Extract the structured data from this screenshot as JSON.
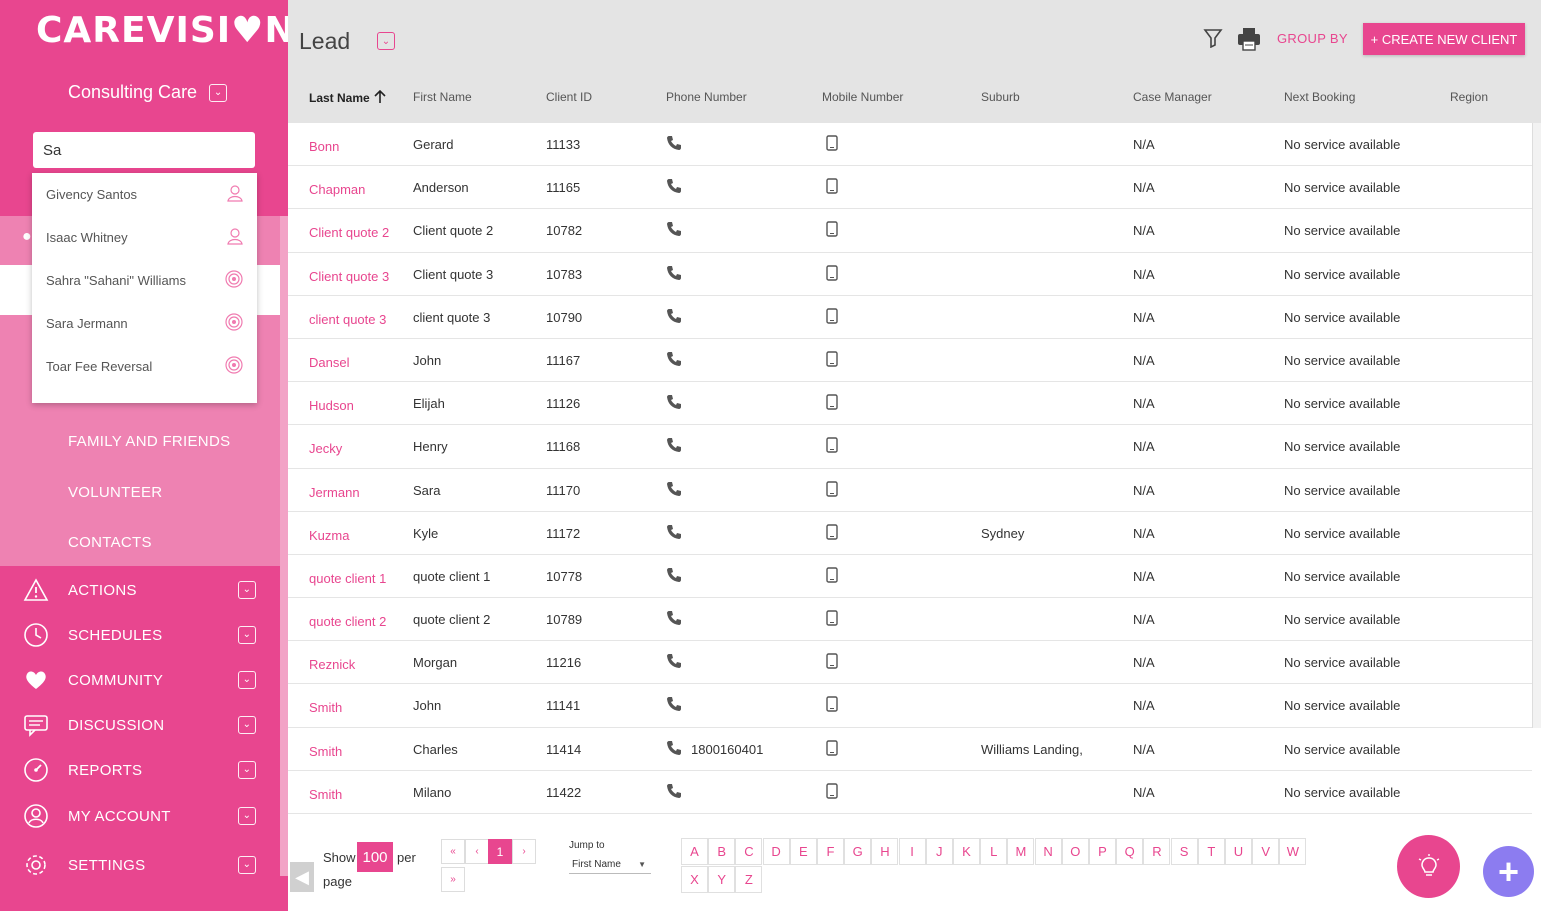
{
  "app": {
    "logo": "CAREVISI♥N",
    "org_name": "Consulting Care"
  },
  "search": {
    "value": "Sa",
    "results": [
      {
        "name": "Givency Santos",
        "icon": "user-icon"
      },
      {
        "name": "Isaac Whitney",
        "icon": "user-icon"
      },
      {
        "name": "Sahra \"Sahani\" Williams",
        "icon": "target-icon"
      },
      {
        "name": "Sara Jermann",
        "icon": "target-icon"
      },
      {
        "name": "Toar Fee Reversal",
        "icon": "target-icon"
      }
    ]
  },
  "sidebar": {
    "sub_items": [
      "FAMILY AND FRIENDS",
      "VOLUNTEER",
      "CONTACTS"
    ],
    "nav": [
      {
        "label": "ACTIONS",
        "icon": "warning-icon"
      },
      {
        "label": "SCHEDULES",
        "icon": "clock-icon"
      },
      {
        "label": "COMMUNITY",
        "icon": "heart-icon"
      },
      {
        "label": "DISCUSSION",
        "icon": "chat-icon"
      },
      {
        "label": "REPORTS",
        "icon": "gauge-icon"
      },
      {
        "label": "MY ACCOUNT",
        "icon": "account-icon"
      },
      {
        "label": "SETTINGS",
        "icon": "gear-icon"
      }
    ]
  },
  "header": {
    "title": "Lead",
    "group_by": "GROUP BY",
    "create_button": "+ CREATE NEW CLIENT"
  },
  "table": {
    "columns": [
      "Last Name",
      "First Name",
      "Client ID",
      "Phone Number",
      "Mobile Number",
      "Suburb",
      "Case Manager",
      "Next Booking",
      "Region"
    ],
    "sorted_column": "Last Name",
    "rows": [
      {
        "last": "Bonn",
        "first": "Gerard",
        "id": "11133",
        "phone": "",
        "suburb": "",
        "manager": "N/A",
        "booking": "No service available"
      },
      {
        "last": "Chapman",
        "first": "Anderson",
        "id": "11165",
        "phone": "",
        "suburb": "",
        "manager": "N/A",
        "booking": "No service available"
      },
      {
        "last": "Client quote 2",
        "first": "Client quote 2",
        "id": "10782",
        "phone": "",
        "suburb": "",
        "manager": "N/A",
        "booking": "No service available"
      },
      {
        "last": "Client quote 3",
        "first": "Client quote 3",
        "id": "10783",
        "phone": "",
        "suburb": "",
        "manager": "N/A",
        "booking": "No service available"
      },
      {
        "last": "client quote 3",
        "first": "client quote 3",
        "id": "10790",
        "phone": "",
        "suburb": "",
        "manager": "N/A",
        "booking": "No service available"
      },
      {
        "last": "Dansel",
        "first": "John",
        "id": "11167",
        "phone": "",
        "suburb": "",
        "manager": "N/A",
        "booking": "No service available"
      },
      {
        "last": "Hudson",
        "first": "Elijah",
        "id": "11126",
        "phone": "",
        "suburb": "",
        "manager": "N/A",
        "booking": "No service available"
      },
      {
        "last": "Jecky",
        "first": "Henry",
        "id": "11168",
        "phone": "",
        "suburb": "",
        "manager": "N/A",
        "booking": "No service available"
      },
      {
        "last": "Jermann",
        "first": "Sara",
        "id": "11170",
        "phone": "",
        "suburb": "",
        "manager": "N/A",
        "booking": "No service available"
      },
      {
        "last": "Kuzma",
        "first": "Kyle",
        "id": "11172",
        "phone": "",
        "suburb": "Sydney",
        "manager": "N/A",
        "booking": "No service available"
      },
      {
        "last": "quote client 1",
        "first": "quote client 1",
        "id": "10778",
        "phone": "",
        "suburb": "",
        "manager": "N/A",
        "booking": "No service available"
      },
      {
        "last": "quote client 2",
        "first": "quote client 2",
        "id": "10789",
        "phone": "",
        "suburb": "",
        "manager": "N/A",
        "booking": "No service available"
      },
      {
        "last": "Reznick",
        "first": "Morgan",
        "id": "11216",
        "phone": "",
        "suburb": "",
        "manager": "N/A",
        "booking": "No service available"
      },
      {
        "last": "Smith",
        "first": "John",
        "id": "11141",
        "phone": "",
        "suburb": "",
        "manager": "N/A",
        "booking": "No service available"
      },
      {
        "last": "Smith",
        "first": "Charles",
        "id": "11414",
        "phone": "1800160401",
        "suburb": "Williams Landing,",
        "manager": "N/A",
        "booking": "No service available"
      },
      {
        "last": "Smith",
        "first": "Milano",
        "id": "11422",
        "phone": "",
        "suburb": "",
        "manager": "N/A",
        "booking": "No service available"
      }
    ]
  },
  "footer": {
    "show": "Show",
    "per_page_value": "100",
    "per": "per",
    "page": "page",
    "pager": {
      "first": "«",
      "prev": "‹",
      "current": "1",
      "next": "›",
      "last": "»"
    },
    "jump_to": "Jump to",
    "jump_select": "First Name",
    "letters": [
      "A",
      "B",
      "C",
      "D",
      "E",
      "F",
      "G",
      "H",
      "I",
      "J",
      "K",
      "L",
      "M",
      "N",
      "O",
      "P",
      "Q",
      "R",
      "S",
      "T",
      "U",
      "V",
      "W",
      "X",
      "Y",
      "Z"
    ]
  },
  "colors": {
    "brand": "#e8468f",
    "brand_light": "#ee82b2",
    "fab_purple": "#8c7cf0"
  }
}
